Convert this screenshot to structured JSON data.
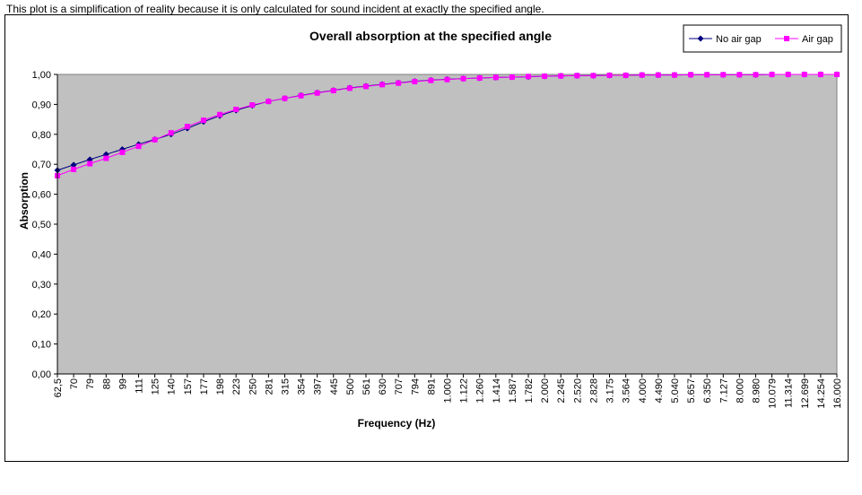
{
  "note": "This plot is a simplification of reality because it is only calculated for sound incident at exactly the specified angle.",
  "chart_data": {
    "type": "line",
    "title": "Overall absorption at the specified angle",
    "xlabel": "Frequency (Hz)",
    "ylabel": "Absorption",
    "ylim": [
      0,
      1
    ],
    "y_ticks": [
      "0,00",
      "0,10",
      "0,20",
      "0,30",
      "0,40",
      "0,50",
      "0,60",
      "0,70",
      "0,80",
      "0,90",
      "1,00"
    ],
    "categories": [
      "62,5",
      "70",
      "79",
      "88",
      "99",
      "111",
      "125",
      "140",
      "157",
      "177",
      "198",
      "223",
      "250",
      "281",
      "315",
      "354",
      "397",
      "445",
      "500",
      "561",
      "630",
      "707",
      "794",
      "891",
      "1.000",
      "1.122",
      "1.260",
      "1.414",
      "1.587",
      "1.782",
      "2.000",
      "2.245",
      "2.520",
      "2.828",
      "3.175",
      "3.564",
      "4.000",
      "4.490",
      "5.040",
      "5.657",
      "6.350",
      "7.127",
      "8.000",
      "8.980",
      "10.079",
      "11.314",
      "12.699",
      "14.254",
      "16.000"
    ],
    "grid": false,
    "legend_position": "top-right",
    "plot_background": "#c0c0c0",
    "series": [
      {
        "name": "No air gap",
        "color": "#000080",
        "marker": "diamond",
        "values": [
          0.68,
          0.698,
          0.716,
          0.733,
          0.75,
          0.767,
          0.783,
          0.8,
          0.82,
          0.842,
          0.862,
          0.88,
          0.896,
          0.91,
          0.92,
          0.93,
          0.939,
          0.947,
          0.955,
          0.961,
          0.967,
          0.972,
          0.977,
          0.981,
          0.984,
          0.986,
          0.988,
          0.99,
          0.991,
          0.992,
          0.994,
          0.995,
          0.996,
          0.996,
          0.997,
          0.997,
          0.998,
          0.998,
          0.998,
          0.999,
          0.999,
          0.999,
          0.999,
          0.999,
          1.0,
          1.0,
          1.0,
          1.0,
          1.0
        ]
      },
      {
        "name": "Air gap",
        "color": "#ff00ff",
        "marker": "square",
        "values": [
          0.662,
          0.683,
          0.702,
          0.72,
          0.74,
          0.76,
          0.782,
          0.805,
          0.826,
          0.847,
          0.866,
          0.883,
          0.898,
          0.91,
          0.92,
          0.929,
          0.938,
          0.946,
          0.954,
          0.96,
          0.966,
          0.971,
          0.976,
          0.98,
          0.983,
          0.986,
          0.988,
          0.99,
          0.991,
          0.993,
          0.994,
          0.995,
          0.996,
          0.996,
          0.997,
          0.997,
          0.998,
          0.998,
          0.998,
          0.999,
          0.999,
          0.999,
          0.999,
          0.999,
          1.0,
          1.0,
          1.0,
          1.0,
          1.0
        ]
      }
    ]
  }
}
